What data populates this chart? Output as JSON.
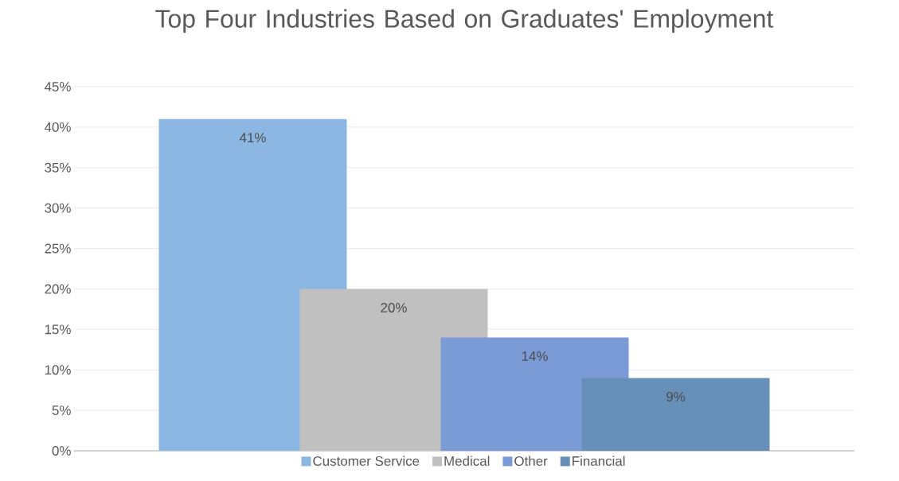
{
  "chart_data": {
    "type": "bar",
    "title": "Top Four Industries Based on Graduates' Employment",
    "categories": [
      null
    ],
    "series": [
      {
        "name": "Customer Service",
        "color": "#8cb7e2",
        "values": [
          41
        ],
        "value_labels": [
          "41%"
        ]
      },
      {
        "name": "Medical",
        "color": "#c0c0c0",
        "values": [
          20
        ],
        "value_labels": [
          "20%"
        ]
      },
      {
        "name": "Other",
        "color": "#7b9bd7",
        "values": [
          14
        ],
        "value_labels": [
          "14%"
        ]
      },
      {
        "name": "Financial",
        "color": "#6690b8",
        "values": [
          9
        ],
        "value_labels": [
          "9%"
        ]
      }
    ],
    "ylim": [
      0,
      45
    ],
    "yticks": [
      {
        "value": 0,
        "label": "0%"
      },
      {
        "value": 5,
        "label": "5%"
      },
      {
        "value": 10,
        "label": "10%"
      },
      {
        "value": 15,
        "label": "15%"
      },
      {
        "value": 20,
        "label": "20%"
      },
      {
        "value": 25,
        "label": "25%"
      },
      {
        "value": 30,
        "label": "30%"
      },
      {
        "value": 35,
        "label": "35%"
      },
      {
        "value": 40,
        "label": "40%"
      },
      {
        "value": 45,
        "label": "45%"
      }
    ],
    "grid": "y",
    "legend": "bottom"
  }
}
